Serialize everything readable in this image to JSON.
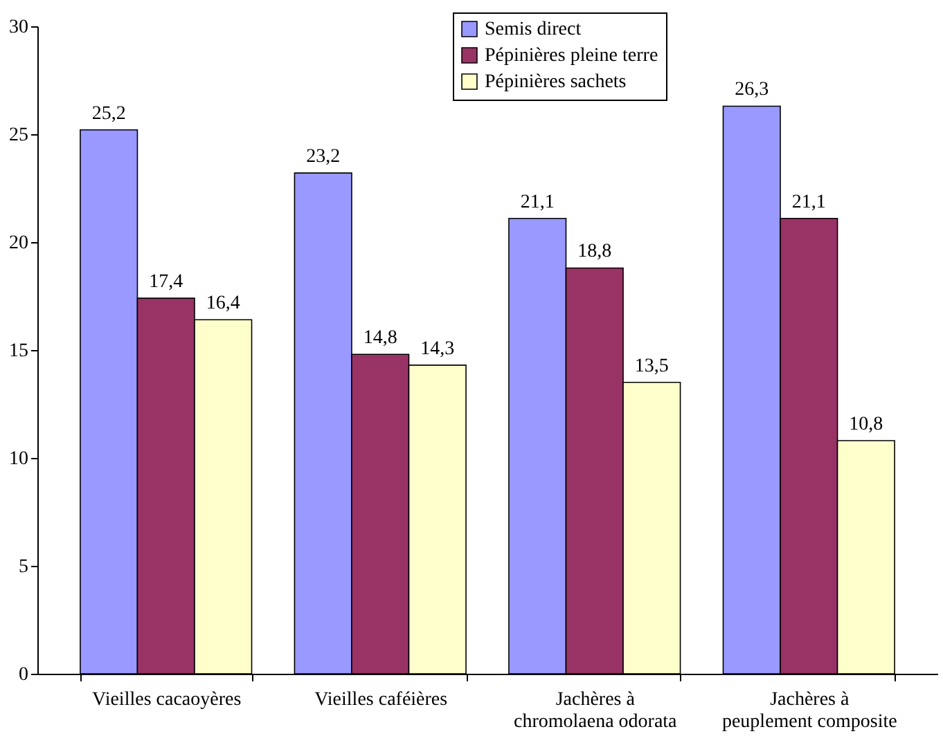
{
  "chart_data": {
    "type": "bar",
    "categories": [
      "Vieilles cacaoyères",
      "Vieilles caféières",
      "Jachères à\nchromolaena odorata",
      "Jachères à\npeuplement composite"
    ],
    "series": [
      {
        "name": "Semis direct",
        "color": "#9999ff",
        "values": [
          25.2,
          23.2,
          21.1,
          26.3
        ],
        "value_labels": [
          "25,2",
          "23,2",
          "21,1",
          "26,3"
        ]
      },
      {
        "name": "Pépinières pleine terre",
        "color": "#993366",
        "values": [
          17.4,
          14.8,
          18.8,
          21.1
        ],
        "value_labels": [
          "17,4",
          "14,8",
          "18,8",
          "21,1"
        ]
      },
      {
        "name": "Pépinières sachets",
        "color": "#ffffcc",
        "values": [
          16.4,
          14.3,
          13.5,
          10.8
        ],
        "value_labels": [
          "16,4",
          "14,3",
          "13,5",
          "10,8"
        ]
      }
    ],
    "ylim": [
      0,
      30
    ],
    "yticks": [
      0,
      5,
      10,
      15,
      20,
      25,
      30
    ],
    "grid": false,
    "legend": "top right"
  }
}
